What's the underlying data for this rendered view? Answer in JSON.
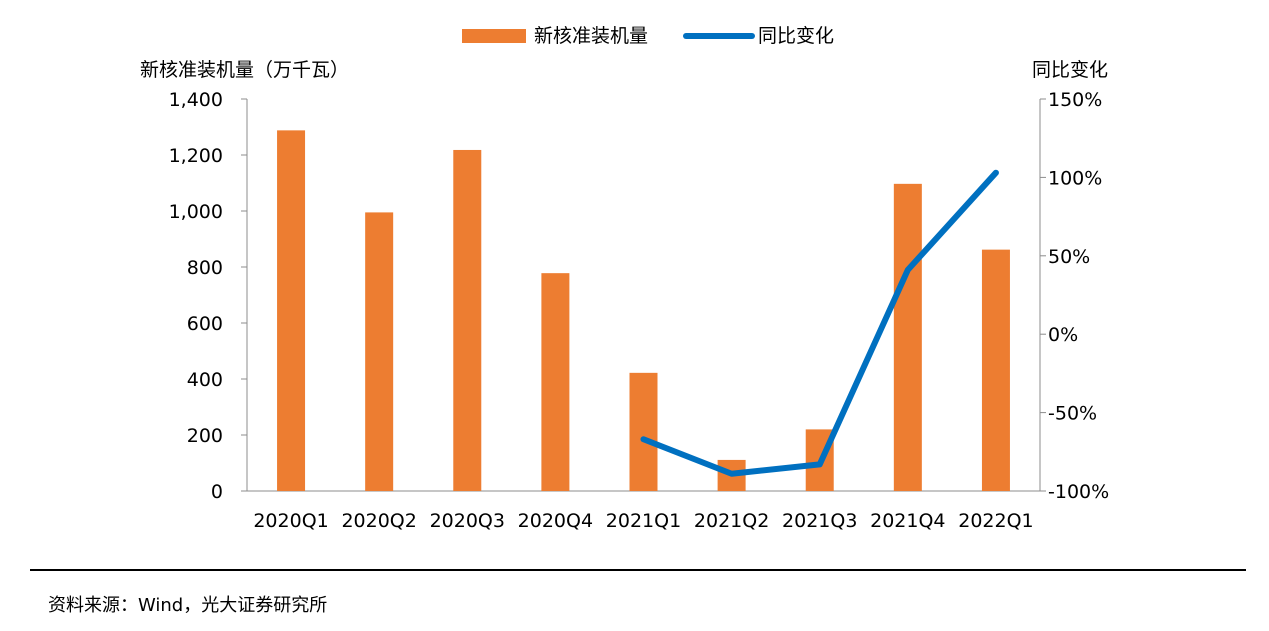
{
  "chart_data": {
    "type": "bar+line",
    "categories": [
      "2020Q1",
      "2020Q2",
      "2020Q3",
      "2020Q4",
      "2021Q1",
      "2021Q2",
      "2021Q3",
      "2021Q4",
      "2022Q1"
    ],
    "series": [
      {
        "name": "新核准装机量",
        "type": "bar",
        "axis": "left",
        "color": "#ED7D31",
        "values": [
          1288,
          995,
          1218,
          778,
          422,
          111,
          220,
          1097,
          862
        ]
      },
      {
        "name": "同比变化",
        "type": "line",
        "axis": "right",
        "color": "#0070C0",
        "values": [
          null,
          null,
          null,
          null,
          -67,
          -89,
          -83,
          41,
          103
        ]
      }
    ],
    "ylabel_left": "新核准装机量（万千瓦）",
    "ylabel_right": "同比变化",
    "ylim_left": [
      0,
      1400
    ],
    "ylim_right": [
      -100,
      150
    ],
    "yticks_left": [
      "0",
      "200",
      "400",
      "600",
      "800",
      "1,000",
      "1,200",
      "1,400"
    ],
    "yticks_right": [
      "-100%",
      "-50%",
      "0%",
      "50%",
      "100%",
      "150%"
    ],
    "legend_position": "top-center",
    "grid": false
  },
  "source_text": "资料来源：Wind，光大证券研究所"
}
